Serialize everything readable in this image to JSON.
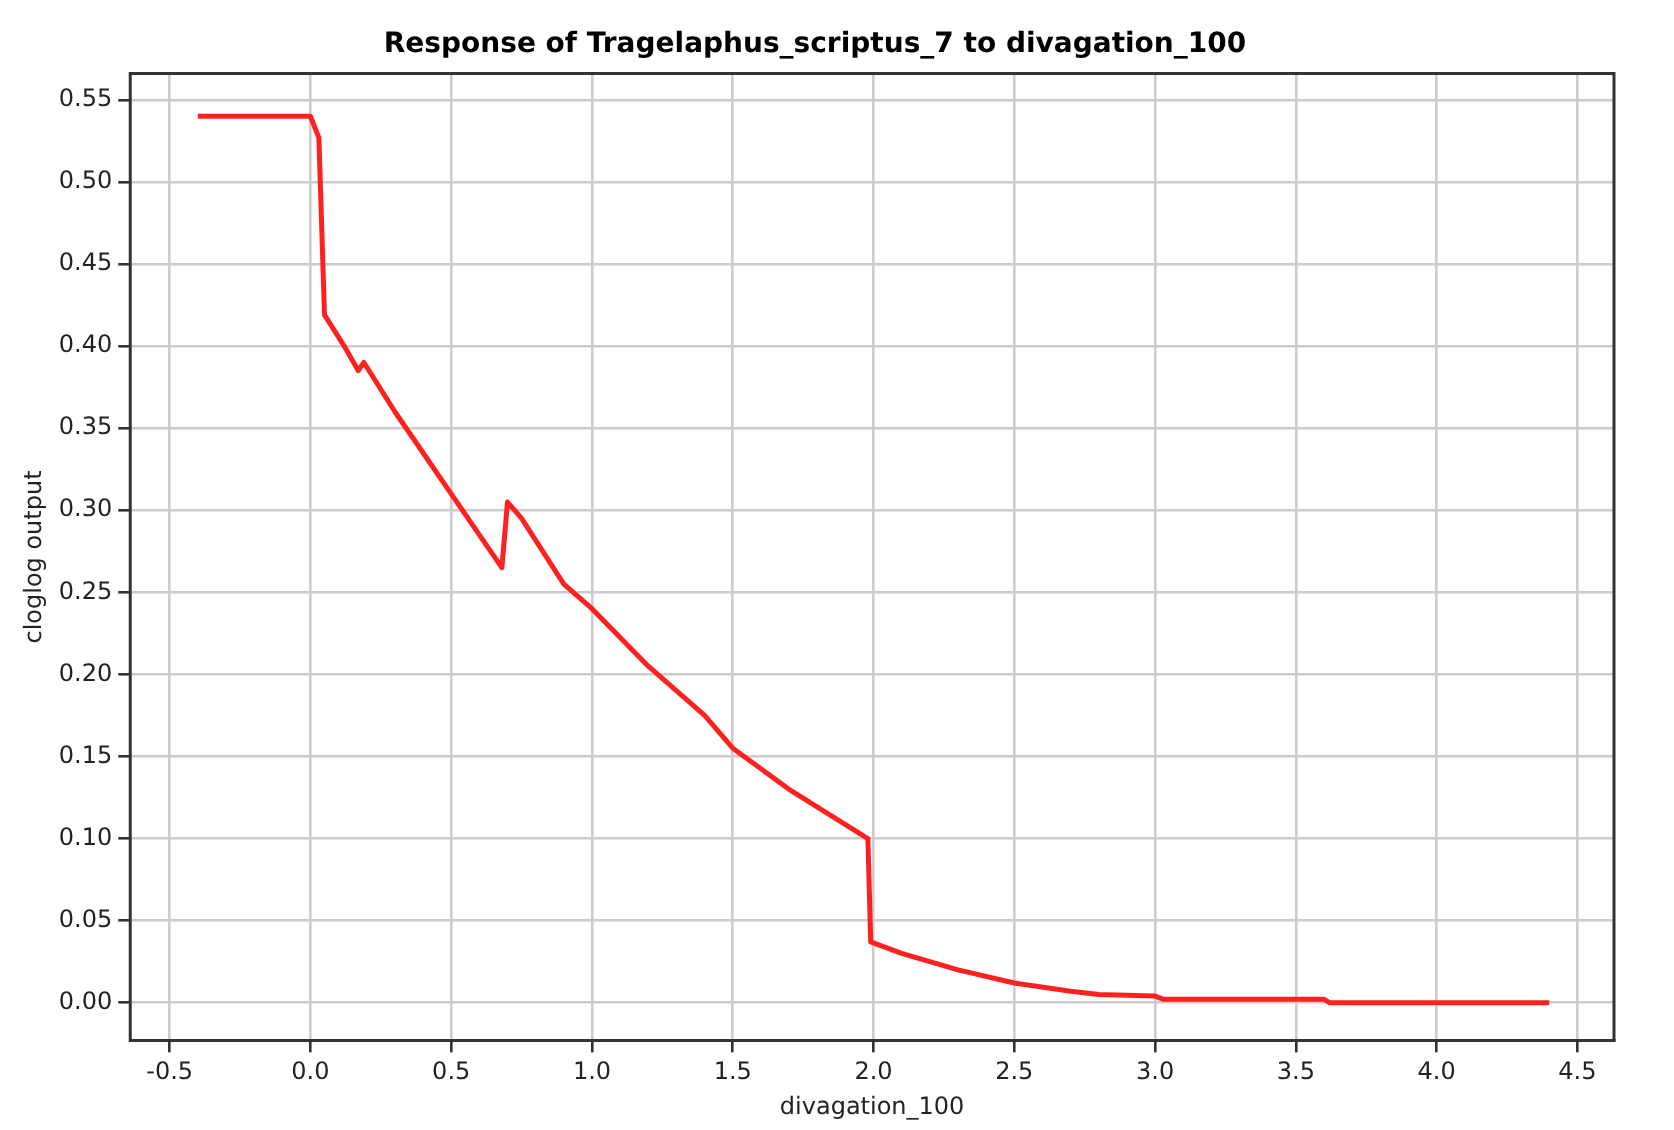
{
  "chart_data": {
    "type": "line",
    "title": "Response of Tragelaphus_scriptus_7 to divagation_100",
    "xlabel": "divagation_100",
    "ylabel": "cloglog output",
    "x": [
      -0.4,
      0.0,
      0.03,
      0.05,
      0.12,
      0.17,
      0.19,
      0.3,
      0.4,
      0.5,
      0.6,
      0.68,
      0.7,
      0.75,
      0.9,
      1.0,
      1.2,
      1.4,
      1.5,
      1.7,
      1.98,
      1.99,
      2.1,
      2.3,
      2.5,
      2.7,
      2.8,
      3.0,
      3.03,
      3.6,
      3.62,
      4.4
    ],
    "series": [
      {
        "color": "#ff2020",
        "values": [
          0.54,
          0.54,
          0.527,
          0.419,
          0.4,
          0.385,
          0.39,
          0.36,
          0.335,
          0.31,
          0.285,
          0.265,
          0.305,
          0.295,
          0.255,
          0.24,
          0.205,
          0.175,
          0.155,
          0.13,
          0.1,
          0.037,
          0.03,
          0.02,
          0.012,
          0.007,
          0.005,
          0.004,
          0.002,
          0.002,
          0.0,
          0.0
        ]
      }
    ],
    "xlim": [
      -0.64,
      4.63
    ],
    "ylim": [
      -0.023,
      0.566
    ],
    "xticks": [
      -0.5,
      {
        "value": 0,
        "label": "0.0"
      },
      0.5,
      {
        "value": 1,
        "label": "1.0"
      },
      1.5,
      {
        "value": 2,
        "label": "2.0"
      },
      2.5,
      {
        "value": 3,
        "label": "3.0"
      },
      3.5,
      {
        "value": 4,
        "label": "4.0"
      },
      4.5
    ],
    "yticks": [
      {
        "value": 0,
        "label": "0.00"
      },
      0.05,
      {
        "value": 0.1,
        "label": "0.10"
      },
      0.15,
      {
        "value": 0.2,
        "label": "0.20"
      },
      0.25,
      {
        "value": 0.3,
        "label": "0.30"
      },
      0.35,
      {
        "value": 0.4,
        "label": "0.40"
      },
      0.45,
      {
        "value": 0.5,
        "label": "0.50"
      },
      0.55
    ],
    "grid": true,
    "legend": false,
    "marker": "none",
    "line_style": "solid"
  }
}
